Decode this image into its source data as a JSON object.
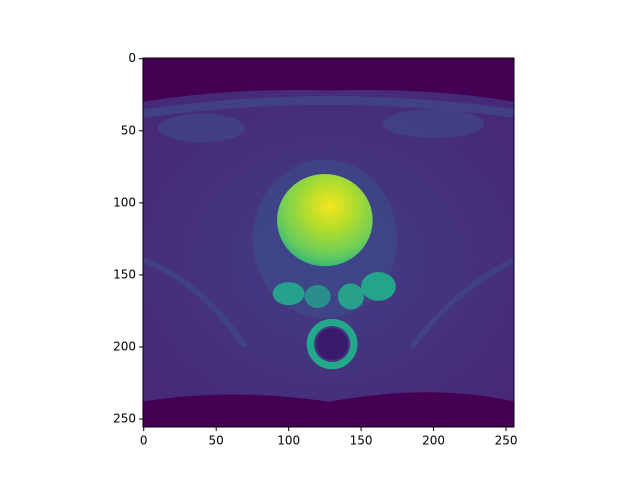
{
  "chart_data": {
    "type": "image",
    "xlim": [
      -0.5,
      255.5
    ],
    "ylim": [
      255.5,
      -0.5
    ],
    "xticks": [
      0,
      50,
      100,
      150,
      200,
      250
    ],
    "yticks": [
      0,
      50,
      100,
      150,
      200,
      250
    ],
    "colormap": "viridis"
  }
}
